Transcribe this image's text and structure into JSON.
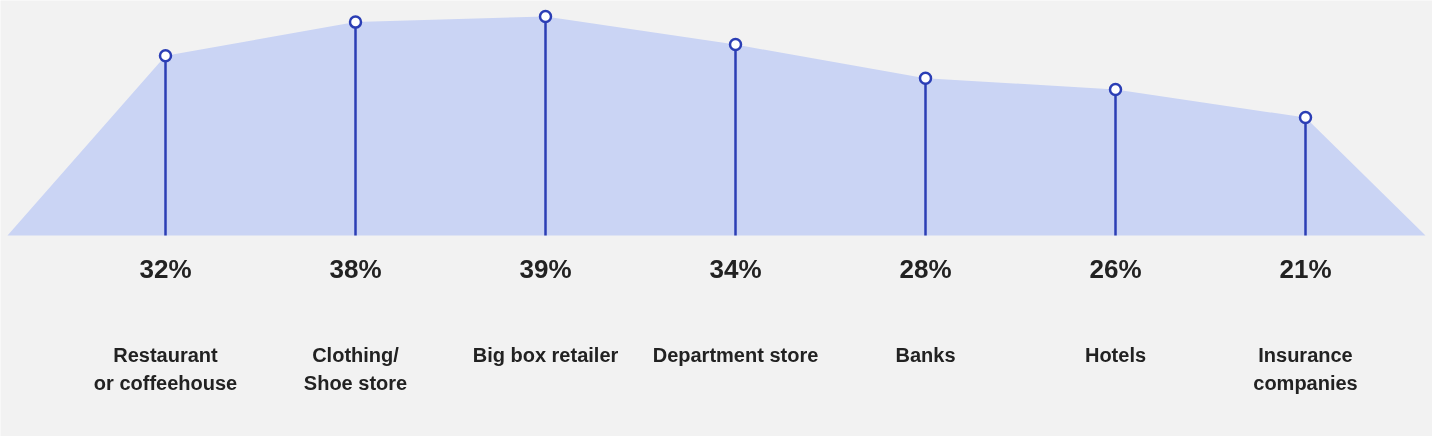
{
  "chart_data": {
    "type": "lollipop",
    "categories": [
      "Restaurant\nor coffeehouse",
      "Clothing/\nShoe store",
      "Big box retailer",
      "Department store",
      "Banks",
      "Hotels",
      "Insurance\ncompanies"
    ],
    "series": [
      {
        "type": "area",
        "color": "#cad4f4",
        "values": [
          32,
          38,
          39,
          34,
          28,
          26,
          21
        ]
      },
      {
        "color": "#2b3eb5",
        "marker": "circle",
        "values": [
          32,
          38,
          39,
          34,
          28,
          26,
          21
        ],
        "value_labels": [
          "32%",
          "38%",
          "39%",
          "34%",
          "28%",
          "26%",
          "21%"
        ]
      }
    ]
  }
}
